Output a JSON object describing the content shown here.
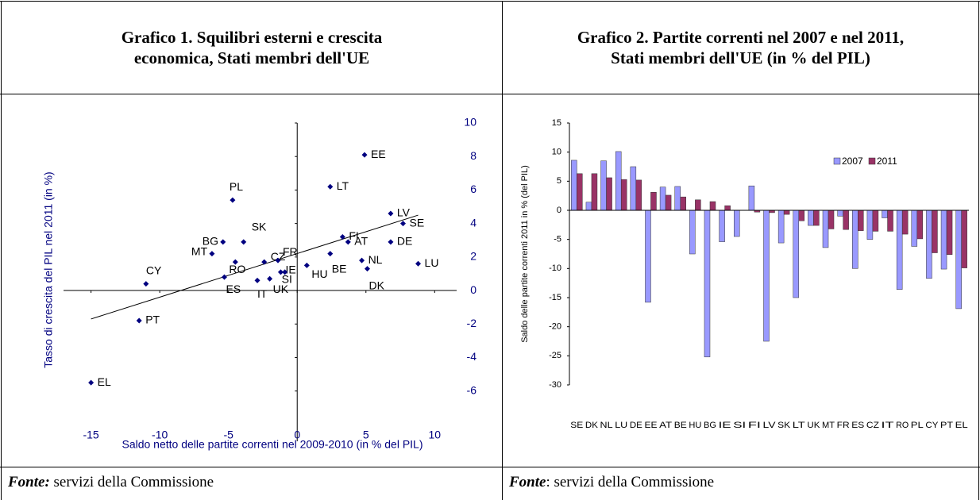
{
  "table": {
    "headers": [
      [
        "Grafico 1. Squilibri esterni e crescita",
        "economica, Stati membri dell'UE"
      ],
      [
        "Grafico 2. Partite correnti nel 2007 e nel 2011,",
        "Stati membri dell'UE (in % del PIL)"
      ]
    ],
    "sources": [
      {
        "label": "Fonte:",
        "text": " servizi della Commissione"
      },
      {
        "label": "Fonte",
        "text": ": servizi della Commissione"
      }
    ]
  },
  "chart_data": [
    {
      "type": "scatter",
      "x_label": "Saldo netto delle partite correnti nel 2009-2010 (in % del PIL)",
      "y_label": "Tasso di crescita del PIL nel 2011 (in %)",
      "labels": [
        "EE",
        "LT",
        "LV",
        "SE",
        "DE",
        "LU",
        "NL",
        "DK",
        "FI",
        "AT",
        "HU",
        "BE",
        "PL",
        "SK",
        "BG",
        "MT",
        "RO",
        "CZ",
        "FR",
        "ES",
        "IT",
        "UK",
        "IE",
        "SI",
        "CY",
        "PT",
        "EL"
      ],
      "x": [
        4.9,
        2.4,
        6.8,
        7.7,
        6.8,
        8.8,
        4.7,
        5.1,
        3.3,
        3.7,
        0.7,
        2.4,
        -4.7,
        -3.9,
        -5.4,
        -6.2,
        -4.5,
        -2.4,
        -1.4,
        -5.3,
        -2.9,
        -2.0,
        -1.2,
        -0.9,
        -11.0,
        -11.5,
        -15.0
      ],
      "y": [
        8.1,
        6.2,
        4.6,
        4.0,
        2.9,
        1.6,
        1.8,
        1.3,
        3.2,
        2.9,
        1.5,
        2.2,
        5.4,
        2.9,
        2.9,
        2.2,
        1.7,
        1.7,
        1.8,
        0.8,
        0.6,
        0.7,
        1.1,
        1.1,
        0.4,
        -1.8,
        -5.5
      ],
      "color": "#000080",
      "trendline": {
        "x": [
          -15,
          8.8
        ],
        "y": [
          -1.7,
          4.5
        ],
        "color": "#000000"
      },
      "xlim": [
        -17,
        11.6
      ],
      "ylim": [
        -9,
        10
      ],
      "xticks": [
        -15,
        -10,
        -5,
        0,
        5,
        10
      ],
      "yticks": [
        -6,
        -4,
        -2,
        0,
        2,
        4,
        6,
        8,
        10
      ]
    },
    {
      "type": "bar",
      "y_label": "Saldo delle partite correnti 2011 in % (del PIL)",
      "categories": [
        "SE",
        "DK",
        "NL",
        "LU",
        "DE",
        "EE",
        "AT",
        "BE",
        "HU",
        "BG",
        "IE",
        "SI",
        "FI",
        "LV",
        "SK",
        "LT",
        "UK",
        "MT",
        "FR",
        "ES",
        "CZ",
        "IT",
        "RO",
        "PL",
        "CY",
        "PT",
        "EL"
      ],
      "series": [
        {
          "name": "2007",
          "color": "#9999ff",
          "values": [
            8.6,
            1.4,
            8.5,
            10.1,
            7.5,
            -15.8,
            4.0,
            4.1,
            -7.5,
            -25.2,
            -5.4,
            -4.5,
            4.2,
            -22.5,
            -5.6,
            -15.0,
            -2.6,
            -6.4,
            -1.0,
            -10.0,
            -5.0,
            -1.3,
            -13.6,
            -6.2,
            -11.7,
            -10.1,
            -16.9
          ]
        },
        {
          "name": "2011",
          "color": "#993366",
          "values": [
            6.3,
            6.3,
            5.6,
            5.3,
            5.2,
            3.1,
            2.6,
            2.3,
            1.8,
            1.5,
            0.8,
            0.0,
            -0.3,
            -0.4,
            -0.7,
            -1.8,
            -2.6,
            -3.2,
            -3.3,
            -3.5,
            -3.6,
            -3.6,
            -4.1,
            -4.9,
            -7.3,
            -7.6,
            -9.9
          ]
        }
      ],
      "ylim": [
        -30,
        15
      ],
      "yticks": [
        -30,
        -25,
        -20,
        -15,
        -10,
        -5,
        0,
        5,
        10,
        15
      ],
      "legend": "upper right"
    }
  ]
}
